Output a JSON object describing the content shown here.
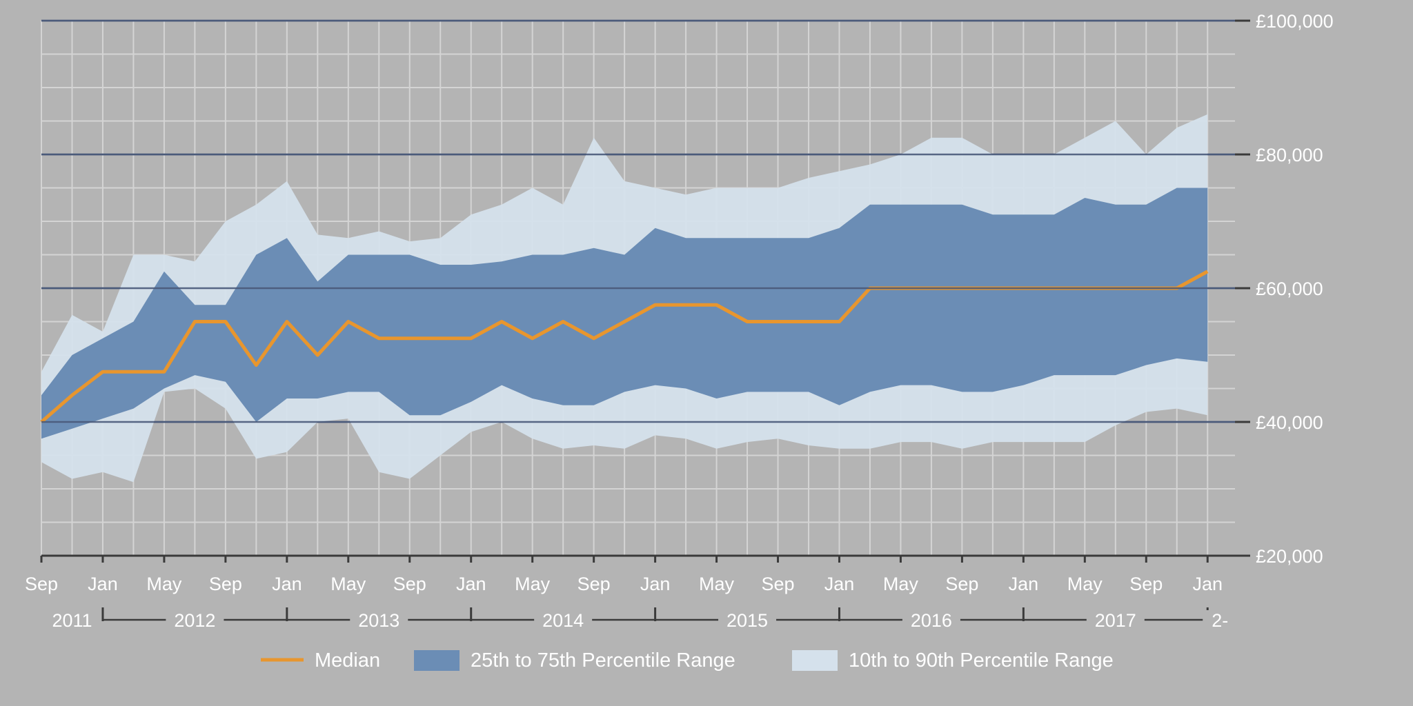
{
  "chart_data": {
    "type": "area",
    "x_start": "2011-09",
    "x_end": "2018-01",
    "y_tick_labels": [
      "£100,000",
      "£80,000",
      "£60,000",
      "£40,000",
      "£20,000"
    ],
    "y_ticks": [
      100000,
      80000,
      60000,
      40000,
      20000
    ],
    "ylim": [
      20000,
      100000
    ],
    "month_labels": [
      "Sep",
      "Jan",
      "May",
      "Sep",
      "Jan",
      "May",
      "Sep",
      "Jan",
      "May",
      "Sep",
      "Jan",
      "May",
      "Sep",
      "Jan",
      "May",
      "Sep",
      "Jan",
      "May",
      "Sep",
      "Jan"
    ],
    "year_labels": [
      "2011",
      "2012",
      "2013",
      "2014",
      "2015",
      "2016",
      "2017",
      "2-"
    ],
    "grid": true,
    "legend_position": "bottom",
    "x": [
      "2011-09",
      "2011-11",
      "2012-01",
      "2012-03",
      "2012-05",
      "2012-07",
      "2012-09",
      "2012-11",
      "2013-01",
      "2013-03",
      "2013-05",
      "2013-07",
      "2013-09",
      "2013-11",
      "2014-01",
      "2014-03",
      "2014-05",
      "2014-07",
      "2014-09",
      "2014-11",
      "2015-01",
      "2015-03",
      "2015-05",
      "2015-07",
      "2015-09",
      "2015-11",
      "2016-01",
      "2016-03",
      "2016-05",
      "2016-07",
      "2016-09",
      "2016-11",
      "2017-01",
      "2017-03",
      "2017-05",
      "2017-07",
      "2017-09",
      "2017-11",
      "2018-01"
    ],
    "series": [
      {
        "name": "Median",
        "role": "line",
        "color": "#e8962e",
        "values": [
          40000,
          44000,
          47500,
          47500,
          47500,
          55000,
          55000,
          48500,
          55000,
          50000,
          55000,
          52500,
          52500,
          52500,
          52500,
          55000,
          52500,
          55000,
          52500,
          55000,
          57500,
          57500,
          57500,
          55000,
          55000,
          55000,
          55000,
          60000,
          60000,
          60000,
          60000,
          60000,
          60000,
          60000,
          60000,
          60000,
          60000,
          60000,
          62500
        ]
      },
      {
        "name": "25th to 75th Percentile Range",
        "role": "band",
        "color": "#6b8db5",
        "upper": [
          44000,
          50000,
          52500,
          55000,
          62500,
          57500,
          57500,
          65000,
          67500,
          61000,
          65000,
          65000,
          65000,
          63500,
          63500,
          64000,
          65000,
          65000,
          66000,
          65000,
          69000,
          67500,
          67500,
          67500,
          67500,
          67500,
          69000,
          72500,
          72500,
          72500,
          72500,
          71000,
          71000,
          71000,
          73500,
          72500,
          72500,
          75000,
          75000
        ],
        "lower": [
          37500,
          39000,
          40500,
          42000,
          45000,
          47000,
          46000,
          40000,
          43500,
          43500,
          44500,
          44500,
          41000,
          41000,
          43000,
          45500,
          43500,
          42500,
          42500,
          44500,
          45500,
          45000,
          43500,
          44500,
          44500,
          44500,
          42500,
          44500,
          45500,
          45500,
          44500,
          44500,
          45500,
          47000,
          47000,
          47000,
          48500,
          49500,
          49000
        ]
      },
      {
        "name": "10th to 90th Percentile Range",
        "role": "band",
        "color": "#d5e1ec",
        "upper": [
          47500,
          56000,
          53500,
          65000,
          65000,
          64000,
          70000,
          72500,
          76000,
          68000,
          67500,
          68500,
          67000,
          67500,
          71000,
          72500,
          75000,
          72500,
          82500,
          76000,
          75000,
          74000,
          75000,
          75000,
          75000,
          76500,
          77500,
          78500,
          80000,
          82500,
          82500,
          80000,
          80000,
          80000,
          82500,
          85000,
          80000,
          84000,
          86000
        ]
      },
      {
        "name": "10th to 90th Percentile Range (lower)",
        "role": "band-lower",
        "lower": [
          34000,
          31500,
          32500,
          31000,
          44500,
          45000,
          42000,
          34500,
          35500,
          40000,
          40500,
          32500,
          31500,
          35000,
          38500,
          40000,
          37500,
          36000,
          36500,
          36000,
          38000,
          37500,
          36000,
          37000,
          37500,
          36500,
          36000,
          36000,
          37000,
          37000,
          36000,
          37000,
          37000,
          37000,
          37000,
          39500,
          41500,
          42000,
          41000
        ]
      }
    ]
  },
  "legend": [
    {
      "label": "Median",
      "kind": "line",
      "color": "#e8962e"
    },
    {
      "label": "25th to 75th Percentile Range",
      "kind": "box",
      "color": "#6b8db5"
    },
    {
      "label": "10th to 90th Percentile Range",
      "kind": "box",
      "color": "#d5e1ec"
    }
  ]
}
